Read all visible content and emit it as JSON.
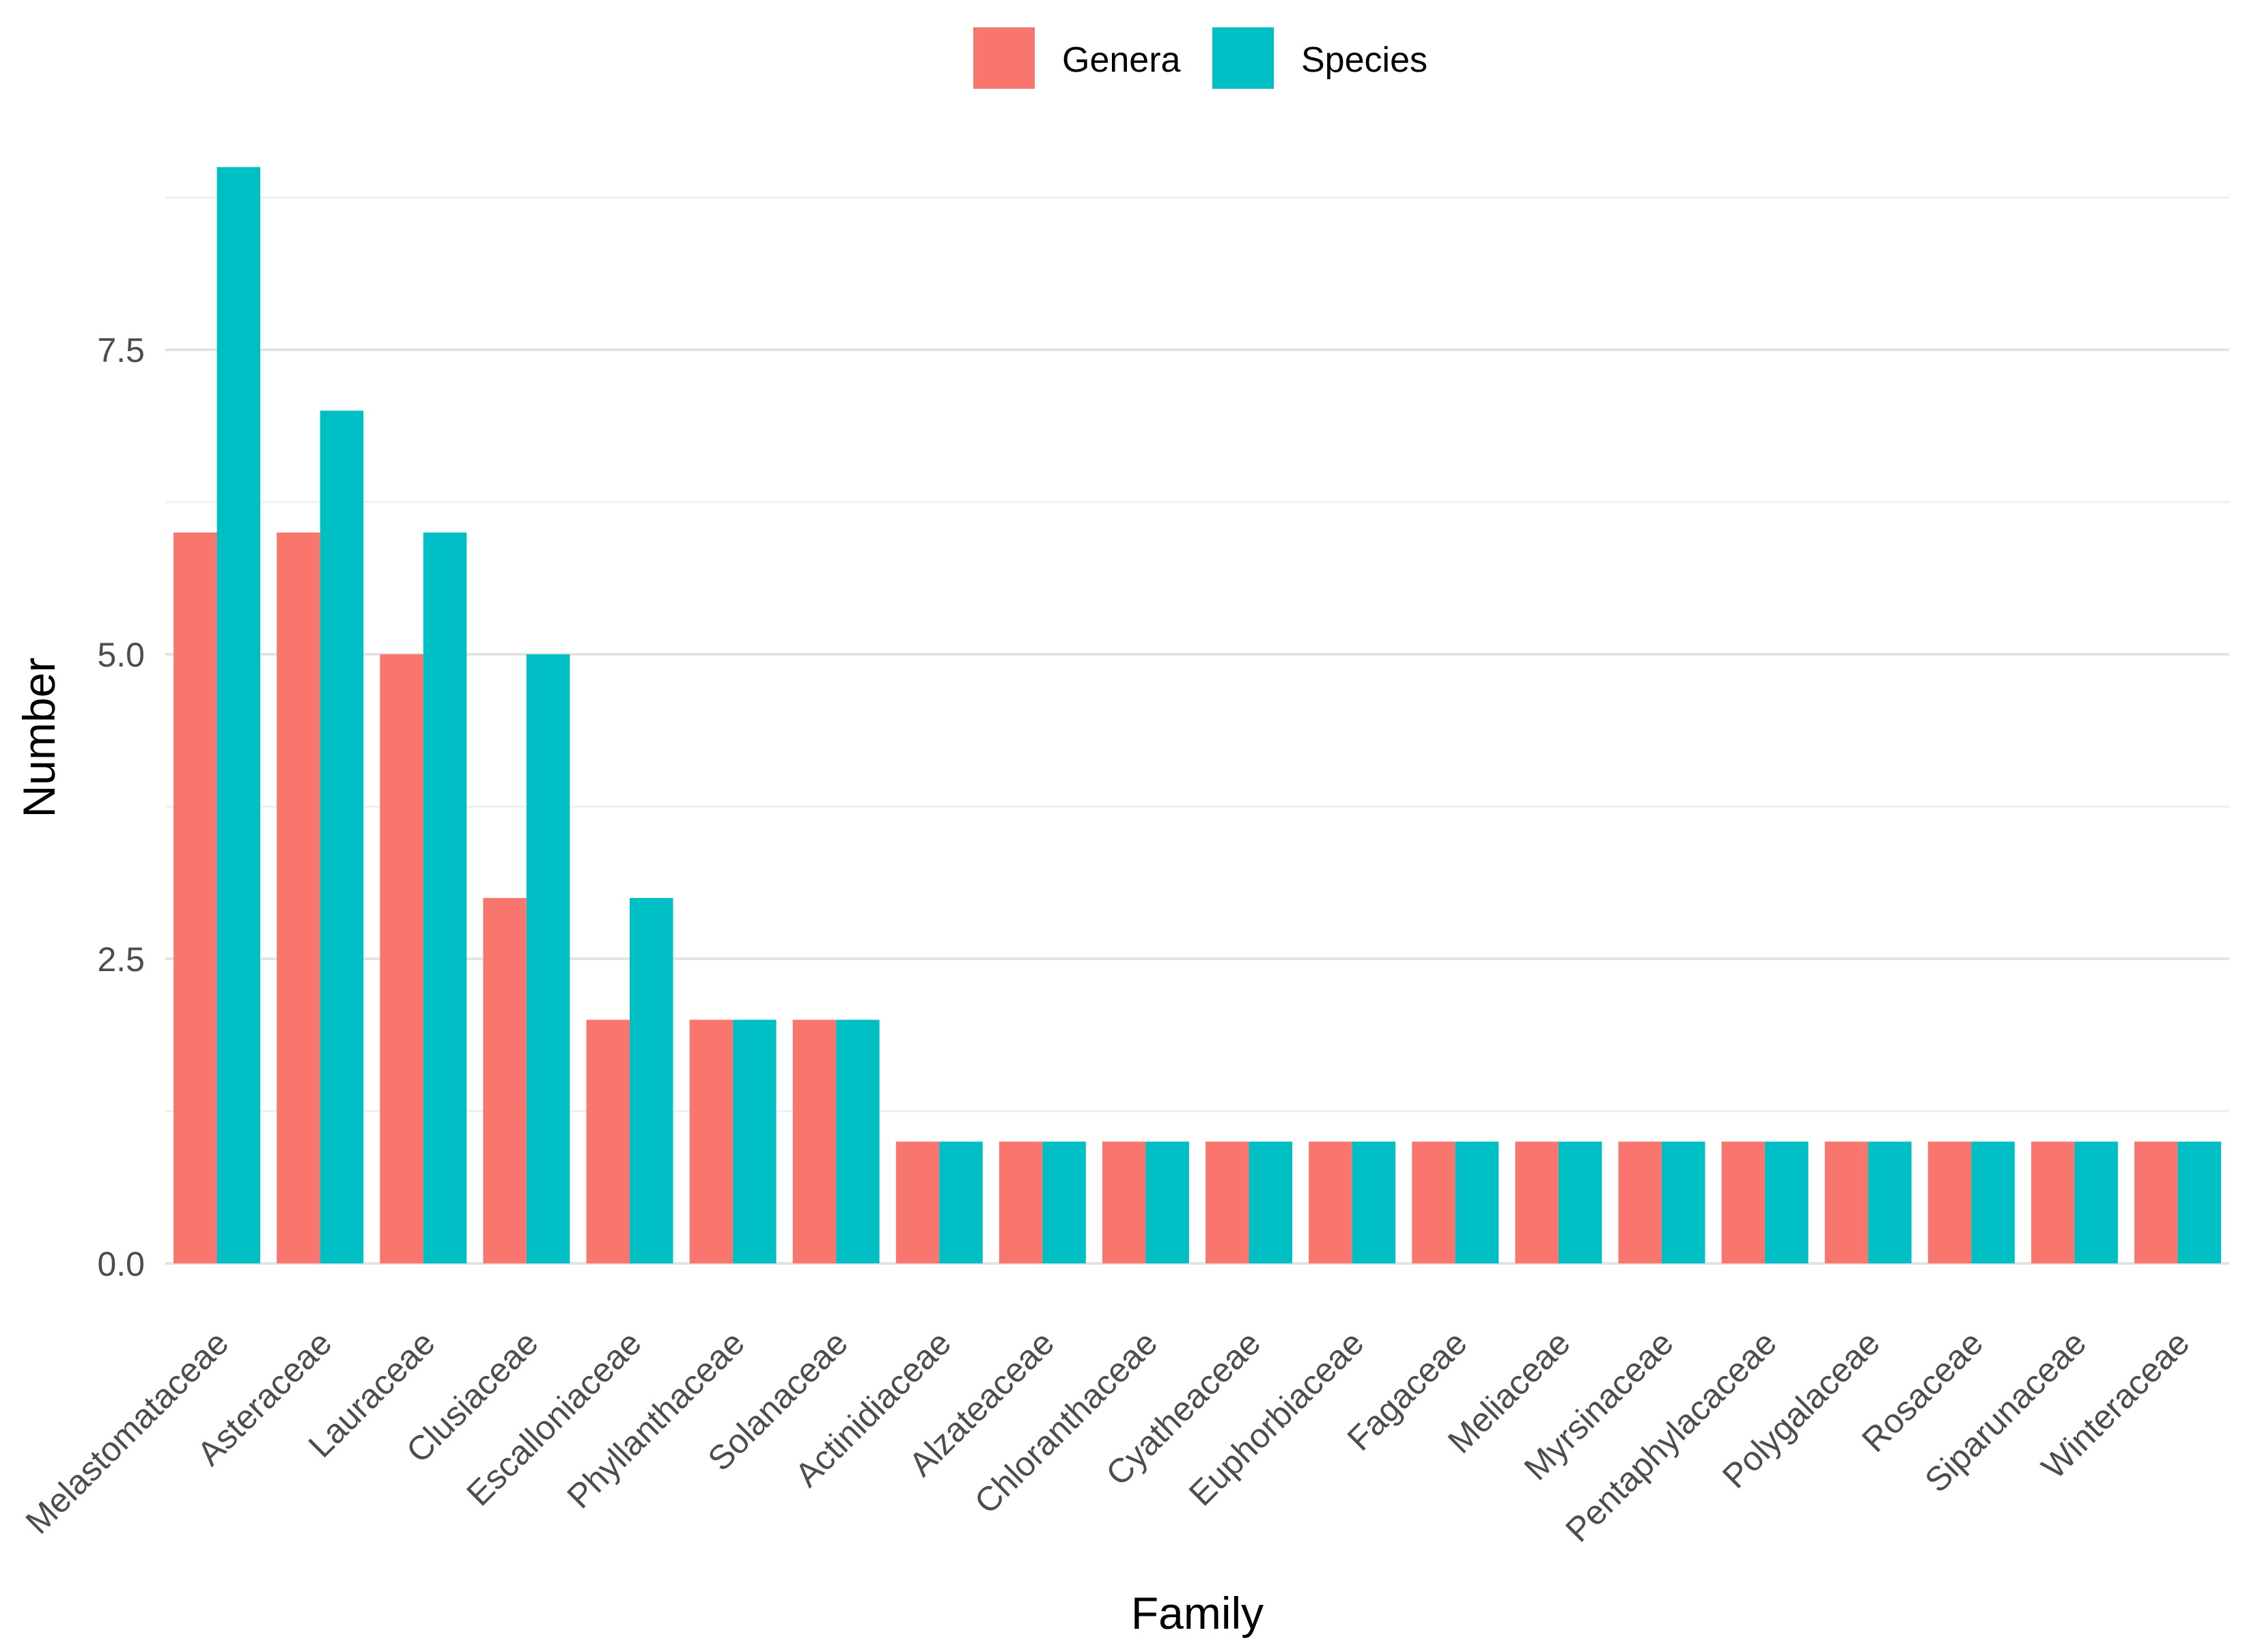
{
  "chart_data": {
    "type": "bar",
    "xlabel": "Family",
    "ylabel": "Number",
    "ylim": [
      0,
      9.25
    ],
    "y_ticks": [
      0,
      2.5,
      5,
      7.5
    ],
    "y_tick_labels": [
      "0.0",
      "2.5",
      "5.0",
      "7.5"
    ],
    "grid": true,
    "legend_position": "top",
    "categories": [
      "Melastomataceae",
      "Asteraceae",
      "Lauraceae",
      "Clusiaceae",
      "Escalloniaceae",
      "Phyllanthaceae",
      "Solanaceae",
      "Actinidiaceae",
      "Alzateaceae",
      "Chloranthaceae",
      "Cyatheaceae",
      "Euphorbiaceae",
      "Fagaceae",
      "Meliaceae",
      "Myrsinaceae",
      "Pentaphylacaceae",
      "Polygalaceae",
      "Rosaceae",
      "Siparunaceae",
      "Winteraceae"
    ],
    "series": [
      {
        "name": "Genera",
        "color": "#F8766D",
        "values": [
          6,
          6,
          5,
          3,
          2,
          2,
          2,
          1,
          1,
          1,
          1,
          1,
          1,
          1,
          1,
          1,
          1,
          1,
          1,
          1
        ]
      },
      {
        "name": "Species",
        "color": "#00BFC4",
        "values": [
          9,
          7,
          6,
          5,
          3,
          2,
          2,
          1,
          1,
          1,
          1,
          1,
          1,
          1,
          1,
          1,
          1,
          1,
          1,
          1
        ]
      }
    ]
  }
}
